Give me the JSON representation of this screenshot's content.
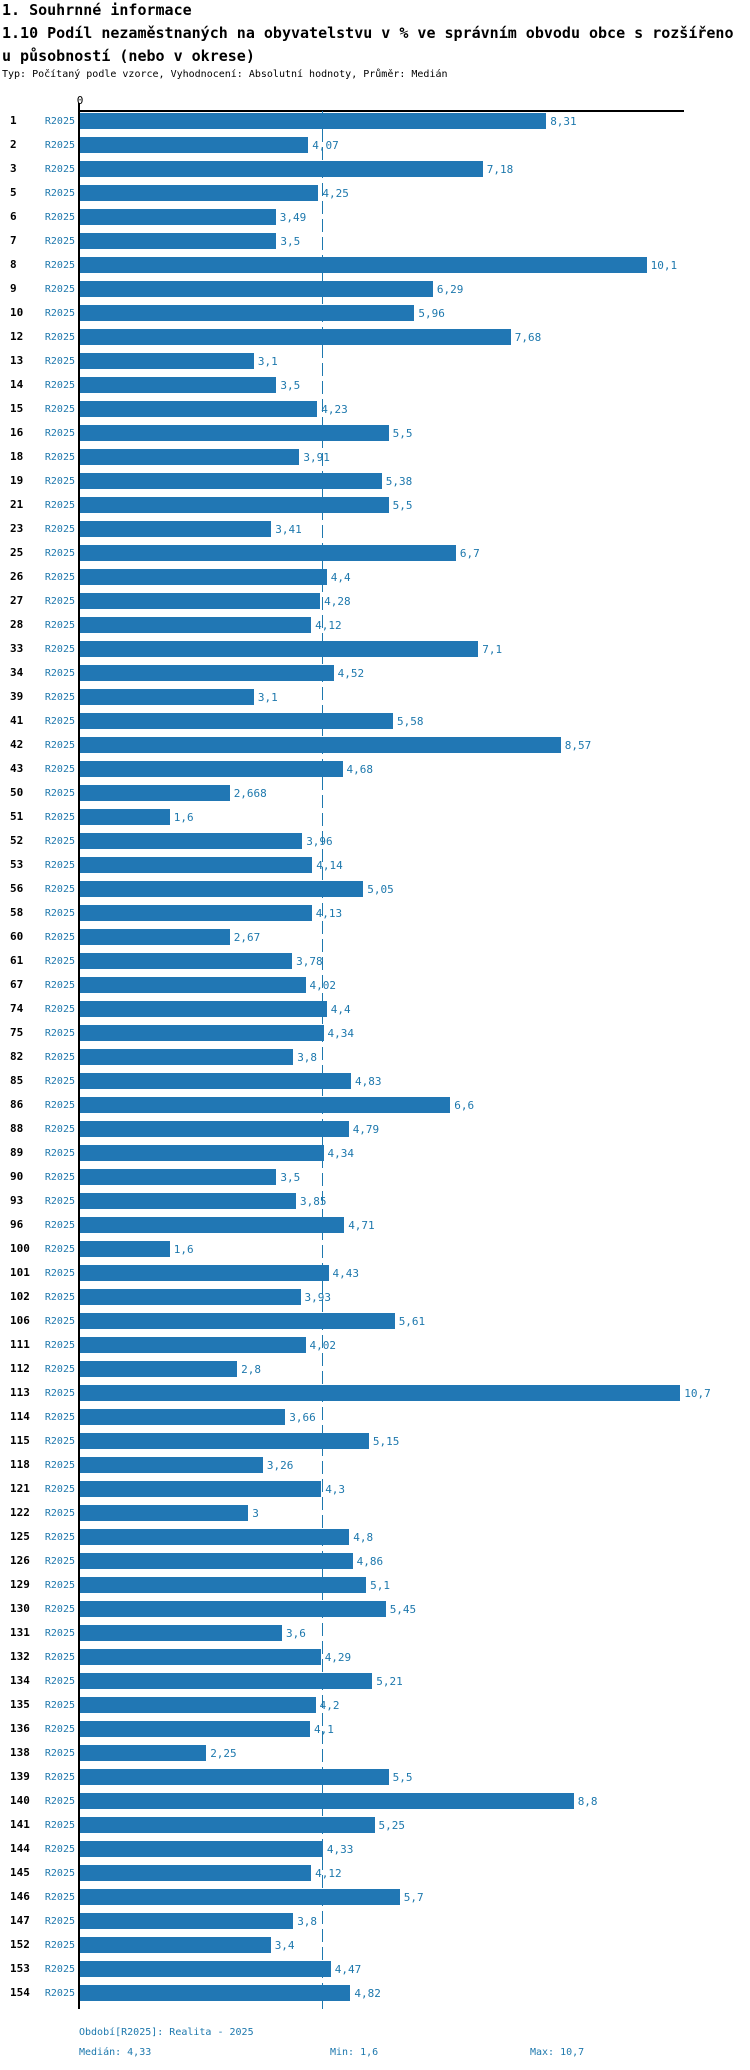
{
  "header": {
    "section_title": "1. Souhrnné informace",
    "chart_title_line1": "1.10 Podíl nezaměstnaných na obyvatelstvu v % ve správním obvodu obce s rozšířeno",
    "chart_title_line2": "u působností (nebo v okrese)",
    "meta": "Typ: Počítaný podle vzorce, Vyhodnocení: Absolutní hodnoty, Průměr: Medián"
  },
  "colors": {
    "bar": "#2177b4",
    "accent_text": "#1d78ad",
    "median_line": "#1e78ae",
    "axis": "#000000"
  },
  "chart_data": {
    "type": "bar",
    "orientation": "horizontal",
    "title": "1.10 Podíl nezaměstnaných na obyvatelstvu v % ve správním obvodu obce s rozšířenou působností (nebo v okrese)",
    "series_label": "R2025",
    "axis_zero_label": "0",
    "xlim": [
      0,
      10.8
    ],
    "median_reference_line": 4.33,
    "legend_position": "none",
    "grid": false,
    "categories": [
      "1",
      "2",
      "3",
      "5",
      "6",
      "7",
      "8",
      "9",
      "10",
      "12",
      "13",
      "14",
      "15",
      "16",
      "18",
      "19",
      "21",
      "23",
      "25",
      "26",
      "27",
      "28",
      "33",
      "34",
      "39",
      "41",
      "42",
      "43",
      "50",
      "51",
      "52",
      "53",
      "56",
      "58",
      "60",
      "61",
      "67",
      "74",
      "75",
      "82",
      "85",
      "86",
      "88",
      "89",
      "90",
      "93",
      "96",
      "100",
      "101",
      "102",
      "106",
      "111",
      "112",
      "113",
      "114",
      "115",
      "118",
      "121",
      "122",
      "125",
      "126",
      "129",
      "130",
      "131",
      "132",
      "134",
      "135",
      "136",
      "138",
      "139",
      "140",
      "141",
      "144",
      "145",
      "146",
      "147",
      "152",
      "153",
      "154"
    ],
    "values": [
      8.31,
      4.07,
      7.18,
      4.25,
      3.49,
      3.5,
      10.1,
      6.29,
      5.96,
      7.68,
      3.1,
      3.5,
      4.23,
      5.5,
      3.91,
      5.38,
      5.5,
      3.41,
      6.7,
      4.4,
      4.28,
      4.12,
      7.1,
      4.52,
      3.1,
      5.58,
      8.57,
      4.68,
      2.668,
      1.6,
      3.96,
      4.14,
      5.05,
      4.13,
      2.67,
      3.78,
      4.02,
      4.4,
      4.34,
      3.8,
      4.83,
      6.6,
      4.79,
      4.34,
      3.5,
      3.85,
      4.71,
      1.6,
      4.43,
      3.93,
      5.61,
      4.02,
      2.8,
      10.7,
      3.66,
      5.15,
      3.26,
      4.3,
      3,
      4.8,
      4.86,
      5.1,
      5.45,
      3.6,
      4.29,
      5.21,
      4.2,
      4.1,
      2.25,
      5.5,
      8.8,
      5.25,
      4.33,
      4.12,
      5.7,
      3.8,
      3.4,
      4.47,
      4.82
    ],
    "value_labels": [
      "8,31",
      "4,07",
      "7,18",
      "4,25",
      "3,49",
      "3,5",
      "10,1",
      "6,29",
      "5,96",
      "7,68",
      "3,1",
      "3,5",
      "4,23",
      "5,5",
      "3,91",
      "5,38",
      "5,5",
      "3,41",
      "6,7",
      "4,4",
      "4,28",
      "4,12",
      "7,1",
      "4,52",
      "3,1",
      "5,58",
      "8,57",
      "4,68",
      "2,668",
      "1,6",
      "3,96",
      "4,14",
      "5,05",
      "4,13",
      "2,67",
      "3,78",
      "4,02",
      "4,4",
      "4,34",
      "3,8",
      "4,83",
      "6,6",
      "4,79",
      "4,34",
      "3,5",
      "3,85",
      "4,71",
      "1,6",
      "4,43",
      "3,93",
      "5,61",
      "4,02",
      "2,8",
      "10,7",
      "3,66",
      "5,15",
      "3,26",
      "4,3",
      "3",
      "4,8",
      "4,86",
      "5,1",
      "5,45",
      "3,6",
      "4,29",
      "5,21",
      "4,2",
      "4,1",
      "2,25",
      "5,5",
      "8,8",
      "5,25",
      "4,33",
      "4,12",
      "5,7",
      "3,8",
      "3,4",
      "4,47",
      "4,82"
    ]
  },
  "footer": {
    "period": "Období[R2025]: Realita - 2025",
    "median": "Medián: 4,33",
    "min": "Min: 1,6",
    "max": "Max: 10,7"
  }
}
